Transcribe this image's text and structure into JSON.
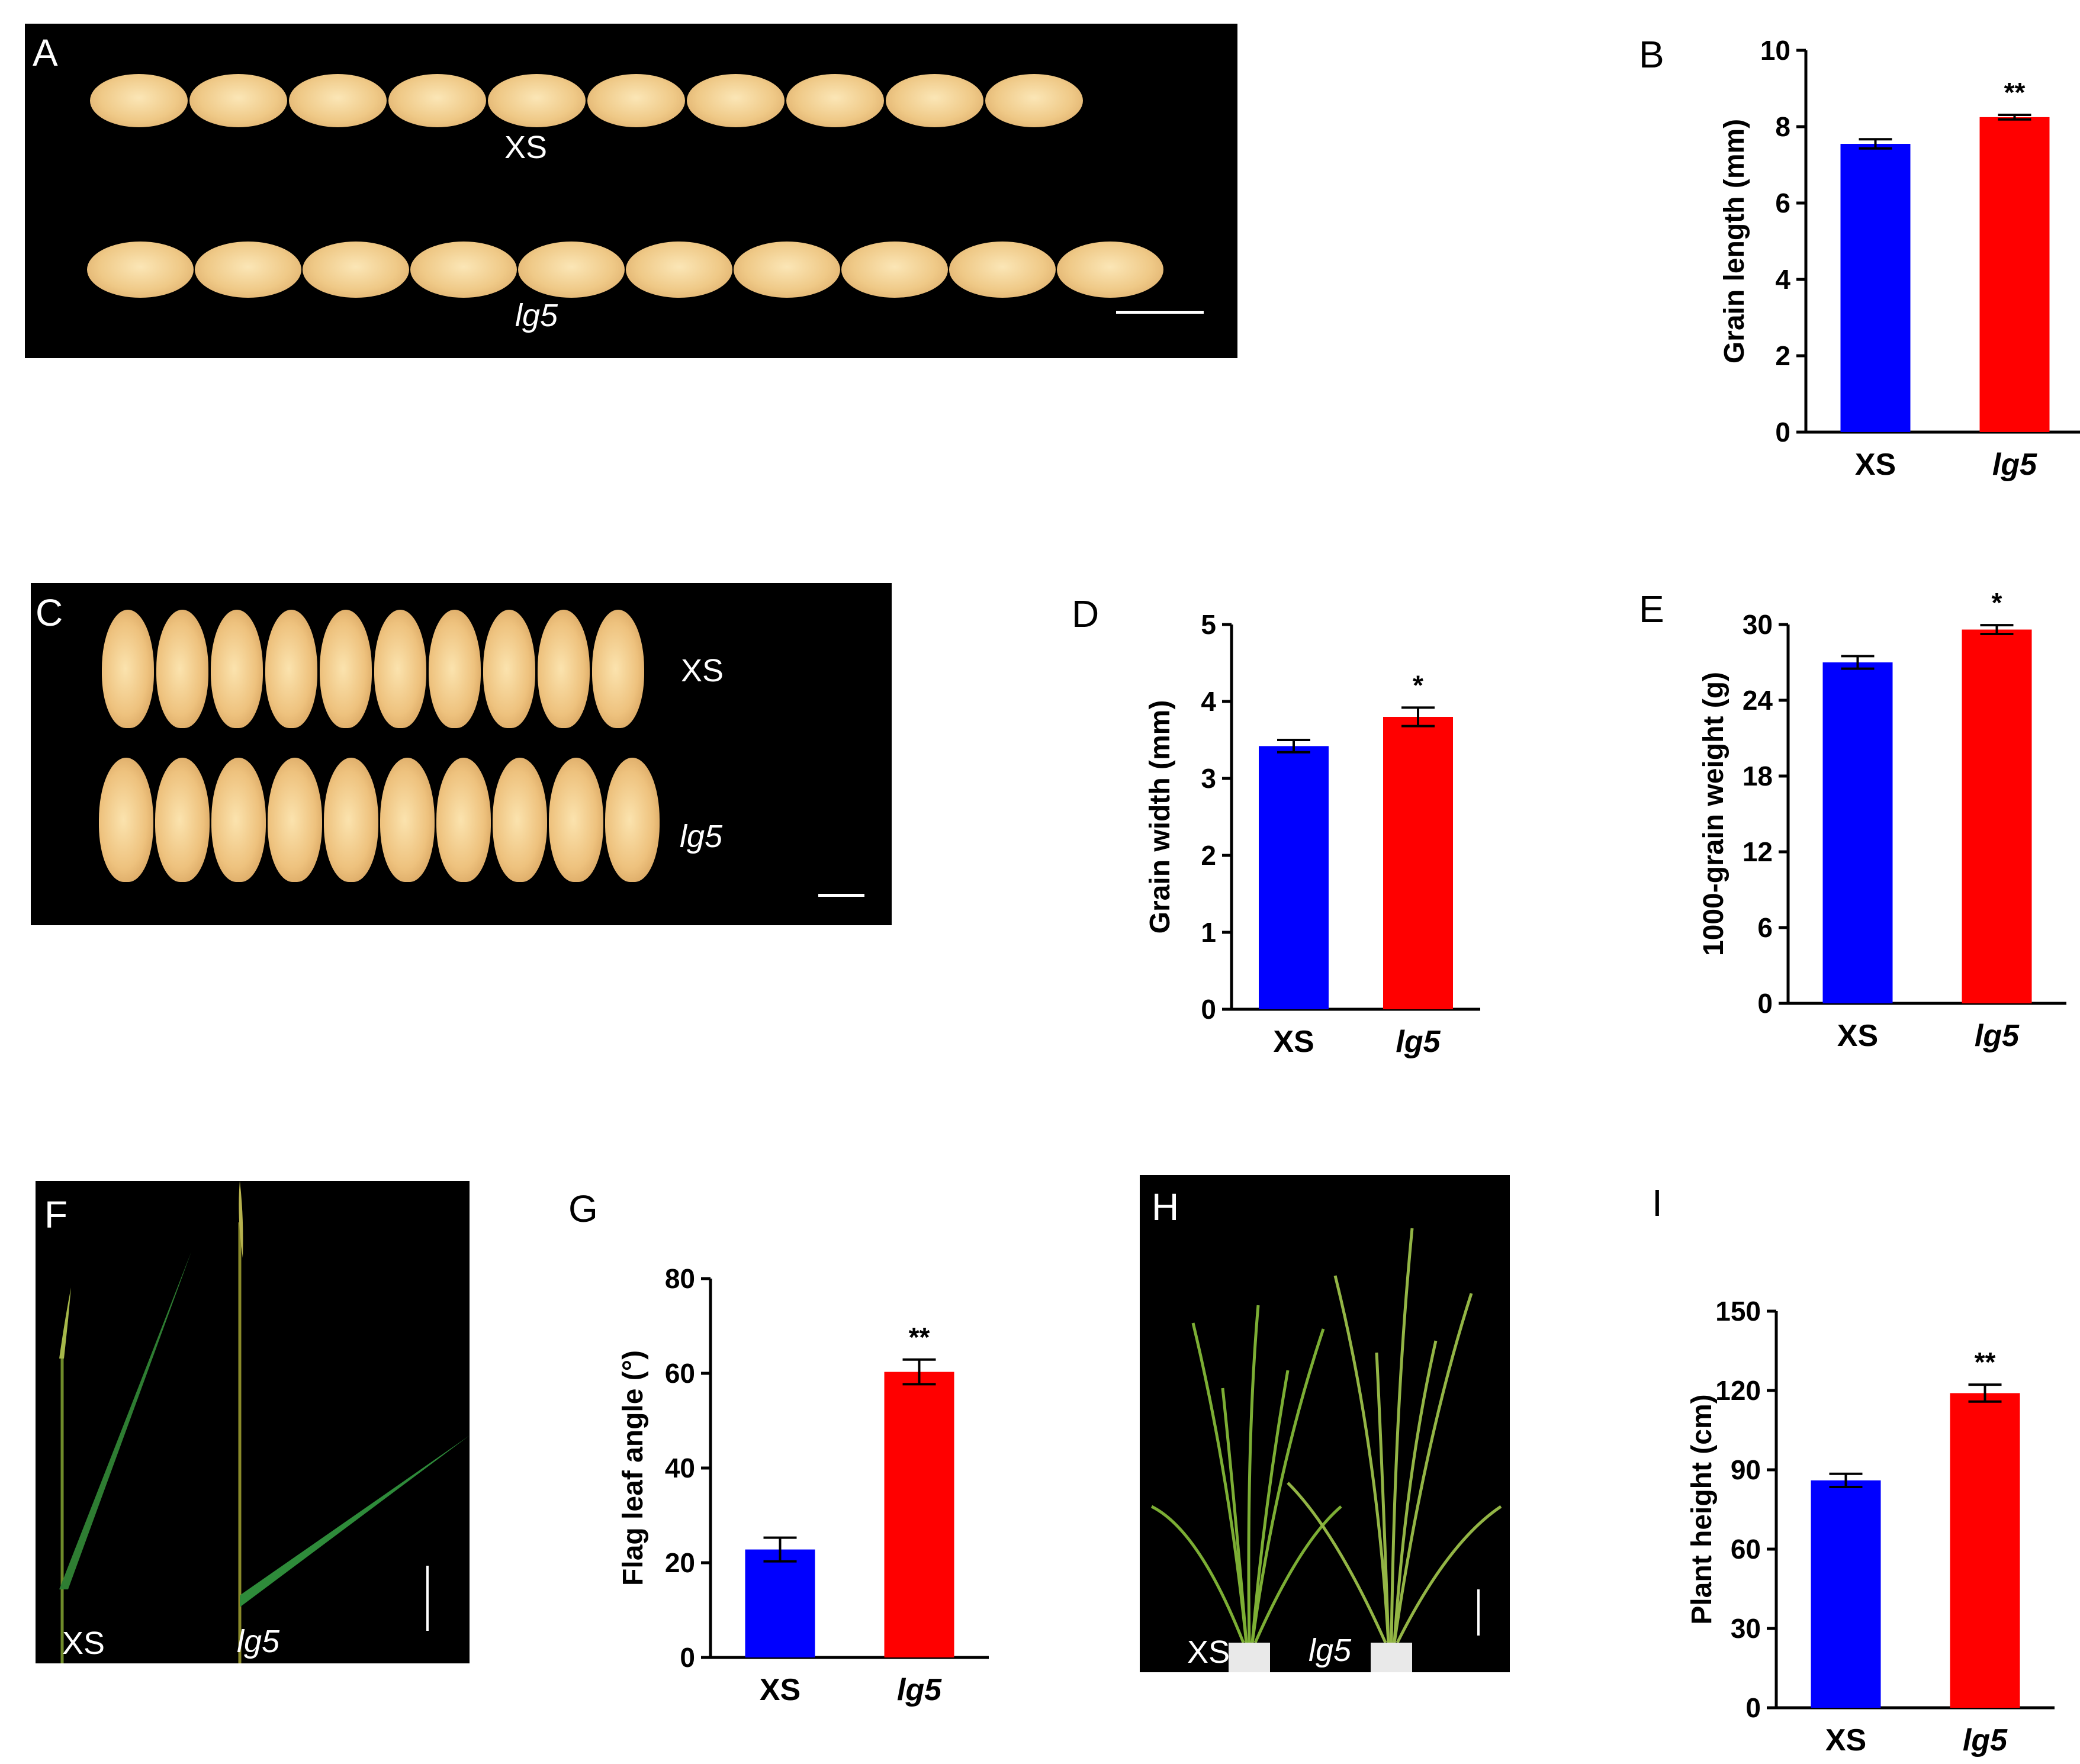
{
  "colors": {
    "xs": "#0000ff",
    "lg5": "#ff0000",
    "background": "#000000"
  },
  "photo_a": {
    "label": "A",
    "caption_top": "XS",
    "caption_bottom": "lg5",
    "grains_per_row": 10
  },
  "photo_c": {
    "label": "C",
    "caption_top": "XS",
    "caption_bottom": "lg5",
    "grains_per_row": 10
  },
  "photo_f": {
    "label": "F",
    "caption_left": "XS",
    "caption_right": "lg5"
  },
  "photo_h": {
    "label": "H",
    "caption_left": "XS",
    "caption_right": "lg5"
  },
  "chart_data": [
    {
      "id": "B",
      "type": "bar",
      "panel_label": "B",
      "ylabel": "Grain length (mm)",
      "categories": [
        "XS",
        "lg5"
      ],
      "values": [
        7.55,
        8.25
      ],
      "errors": [
        0.12,
        0.06
      ],
      "significance": [
        "",
        "**"
      ],
      "ylim": [
        0,
        10
      ],
      "yticks": [
        "0",
        "2",
        "4",
        "6",
        "8",
        "10"
      ]
    },
    {
      "id": "D",
      "type": "bar",
      "panel_label": "D",
      "ylabel": "Grain width (mm)",
      "categories": [
        "XS",
        "lg5"
      ],
      "values": [
        3.42,
        3.8
      ],
      "errors": [
        0.08,
        0.12
      ],
      "significance": [
        "",
        "*"
      ],
      "ylim": [
        0,
        5
      ],
      "yticks": [
        "0",
        "1",
        "2",
        "3",
        "4",
        "5"
      ]
    },
    {
      "id": "E",
      "type": "bar",
      "panel_label": "E",
      "ylabel": "1000-grain weight (g)",
      "categories": [
        "XS",
        "lg5"
      ],
      "values": [
        27.0,
        29.6
      ],
      "errors": [
        0.5,
        0.35
      ],
      "significance": [
        "",
        "*"
      ],
      "ylim": [
        0,
        30
      ],
      "yticks": [
        "0",
        "6",
        "12",
        "18",
        "24",
        "30"
      ]
    },
    {
      "id": "G",
      "type": "bar",
      "panel_label": "G",
      "ylabel": "Flag leaf angle (°)",
      "categories": [
        "XS",
        "lg5"
      ],
      "values": [
        22.8,
        60.3
      ],
      "errors": [
        2.5,
        2.6
      ],
      "significance": [
        "",
        "**"
      ],
      "ylim": [
        0,
        80
      ],
      "yticks": [
        "0",
        "20",
        "40",
        "60",
        "80"
      ]
    },
    {
      "id": "I",
      "type": "bar",
      "panel_label": "I",
      "ylabel": "Plant height (cm)",
      "categories": [
        "XS",
        "lg5"
      ],
      "values": [
        86,
        119
      ],
      "errors": [
        2.5,
        3.2
      ],
      "significance": [
        "",
        "**"
      ],
      "ylim": [
        0,
        150
      ],
      "yticks": [
        "0",
        "30",
        "60",
        "90",
        "120",
        "150"
      ]
    }
  ]
}
